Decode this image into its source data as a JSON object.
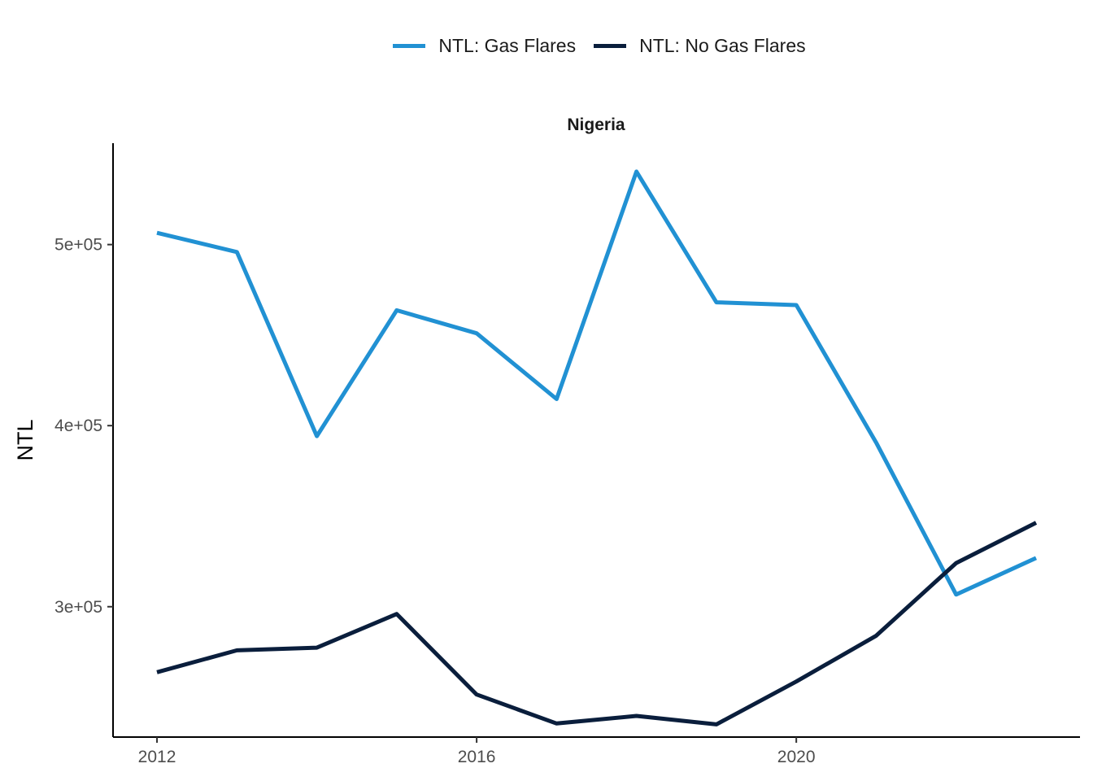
{
  "chart_data": {
    "type": "line",
    "title": "Nigeria",
    "xlabel": "",
    "ylabel": "NTL",
    "x": [
      2012,
      2013,
      2014,
      2015,
      2016,
      2017,
      2018,
      2019,
      2020,
      2021,
      2022,
      2023
    ],
    "xlim": [
      2011.45,
      2023.55
    ],
    "ylim": [
      228000,
      556000
    ],
    "x_ticks": [
      2012,
      2016,
      2020
    ],
    "x_tick_labels": [
      "2012",
      "2016",
      "2020"
    ],
    "y_ticks": [
      300000,
      400000,
      500000
    ],
    "y_tick_labels": [
      "3e+05",
      "4e+05",
      "5e+05"
    ],
    "grid": false,
    "legend_position": "top",
    "series": [
      {
        "name": "NTL: Gas Flares",
        "color": "#2191d3",
        "values": [
          506500,
          495900,
          394200,
          463700,
          451000,
          414700,
          540300,
          468100,
          466600,
          390600,
          306700,
          326900
        ]
      },
      {
        "name": "NTL: No Gas Flares",
        "color": "#0a1e3c",
        "values": [
          263800,
          275900,
          277400,
          296000,
          251500,
          235500,
          239700,
          235000,
          258700,
          284000,
          324100,
          346400
        ]
      }
    ]
  }
}
